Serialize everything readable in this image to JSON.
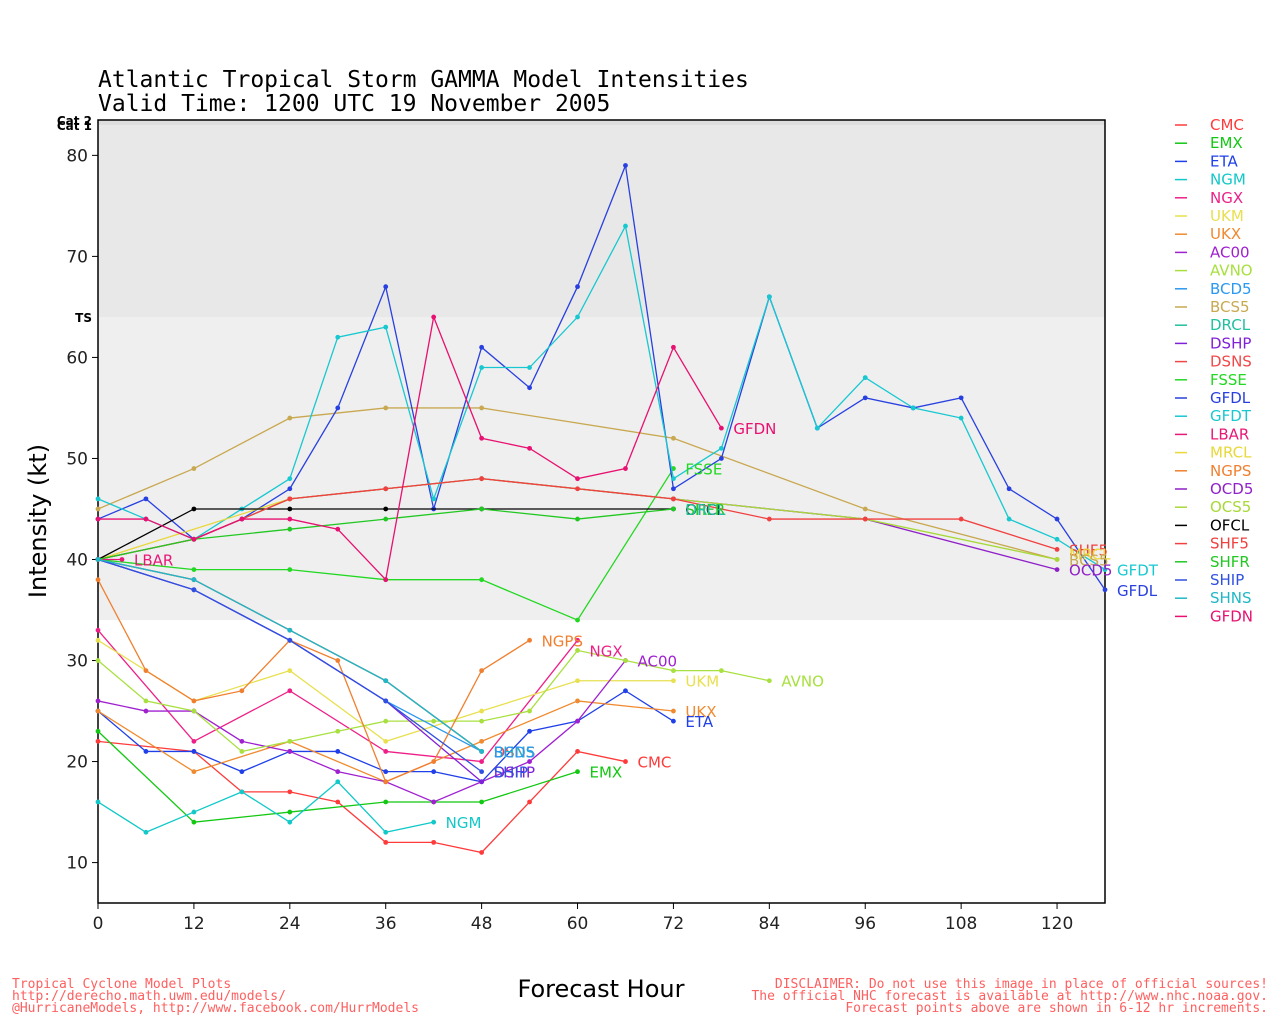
{
  "chart_data": {
    "type": "line",
    "title": "Atlantic Tropical Storm GAMMA Model Intensities",
    "subtitle": "Valid Time: 1200 UTC 19 November 2005",
    "xlabel": "Forecast Hour",
    "ylabel": "Intensity (kt)",
    "xlim": [
      0,
      126
    ],
    "ylim": [
      6,
      83.5
    ],
    "xticks": [
      "0",
      "12",
      "24",
      "36",
      "48",
      "60",
      "72",
      "84",
      "96",
      "108",
      "120"
    ],
    "yticks": [
      "10",
      "20",
      "30",
      "40",
      "50",
      "60",
      "70",
      "80"
    ],
    "bands": [
      {
        "label": "TS",
        "from": 34,
        "to": 64
      },
      {
        "label": "Cat 1",
        "from": 64,
        "to": 83
      },
      {
        "label": "Cat 2",
        "from": 83,
        "to": 83.5
      }
    ],
    "legend_position": "right",
    "series": [
      {
        "name": "CMC",
        "color": "#ff3a3a",
        "label": "CMC",
        "x": [
          0,
          12,
          18,
          24,
          30,
          36,
          42,
          48,
          54,
          60,
          66
        ],
        "y": [
          22,
          21,
          17,
          17,
          16,
          12,
          12,
          11,
          16,
          21,
          20
        ]
      },
      {
        "name": "EMX",
        "color": "#12c812",
        "label": "EMX",
        "x": [
          0,
          12,
          24,
          36,
          42,
          48,
          60
        ],
        "y": [
          23,
          14,
          15,
          16,
          16,
          16,
          19
        ]
      },
      {
        "name": "ETA",
        "color": "#1f3fe8",
        "label": "ETA",
        "x": [
          0,
          6,
          12,
          18,
          24,
          30,
          36,
          42,
          48,
          54,
          60,
          66,
          72
        ],
        "y": [
          25,
          21,
          21,
          19,
          21,
          21,
          19,
          19,
          18,
          23,
          24,
          27,
          24
        ]
      },
      {
        "name": "NGM",
        "color": "#12c8c8",
        "label": "NGM",
        "x": [
          0,
          6,
          12,
          18,
          24,
          30,
          36,
          42
        ],
        "y": [
          16,
          13,
          15,
          17,
          14,
          18,
          13,
          14
        ]
      },
      {
        "name": "NGX",
        "color": "#ee2088",
        "label": "NGX",
        "x": [
          0,
          12,
          24,
          36,
          48,
          60
        ],
        "y": [
          33,
          22,
          27,
          21,
          20,
          32
        ]
      },
      {
        "name": "UKM",
        "color": "#e8e050",
        "label": "UKM",
        "x": [
          0,
          12,
          24,
          36,
          48,
          60,
          72
        ],
        "y": [
          32,
          26,
          29,
          22,
          25,
          28,
          28
        ]
      },
      {
        "name": "UKX",
        "color": "#f08a30",
        "label": "UKX",
        "x": [
          0,
          12,
          24,
          36,
          48,
          60,
          72
        ],
        "y": [
          25,
          19,
          22,
          18,
          22,
          26,
          25
        ]
      },
      {
        "name": "AC00",
        "color": "#a020d0",
        "label": "AC00",
        "x": [
          0,
          6,
          12,
          18,
          24,
          30,
          36,
          42,
          48,
          54,
          60,
          66
        ],
        "y": [
          26,
          25,
          25,
          22,
          21,
          19,
          18,
          16,
          18,
          20,
          24,
          30
        ]
      },
      {
        "name": "AVNO",
        "color": "#a8e040",
        "label": "AVNO",
        "x": [
          0,
          6,
          12,
          18,
          24,
          30,
          36,
          42,
          48,
          54,
          60,
          66,
          72,
          78,
          84
        ],
        "y": [
          30,
          26,
          25,
          21,
          22,
          23,
          24,
          24,
          24,
          25,
          31,
          30,
          29,
          29,
          28
        ]
      },
      {
        "name": "BCD5",
        "color": "#2a98f0",
        "label": "BCD5",
        "x": [
          0,
          12,
          24,
          36,
          48
        ],
        "y": [
          40,
          37,
          32,
          26,
          21
        ]
      },
      {
        "name": "BCS5",
        "color": "#c8a850",
        "label": "BCS5",
        "x": [
          0,
          12,
          24,
          36,
          48,
          72,
          96,
          120
        ],
        "y": [
          45,
          49,
          54,
          55,
          55,
          52,
          45,
          40
        ]
      },
      {
        "name": "DRCL",
        "color": "#20c0a0",
        "label": "DRCL",
        "x": [
          0,
          12,
          24,
          36,
          48
        ],
        "y": [
          40,
          38,
          33,
          28,
          21
        ]
      },
      {
        "name": "DSHP",
        "color": "#8020d8",
        "label": "DSHP",
        "x": [
          0,
          12,
          24,
          36,
          48
        ],
        "y": [
          40,
          37,
          32,
          26,
          18
        ]
      },
      {
        "name": "DSNS",
        "color": "#f04848",
        "label": "DSNS",
        "x": [
          0,
          12,
          24,
          36,
          48
        ],
        "y": [
          40,
          38,
          33,
          28,
          21
        ]
      },
      {
        "name": "FSSE",
        "color": "#22d822",
        "label": "FSSE",
        "x": [
          0,
          12,
          24,
          36,
          48,
          60,
          72
        ],
        "y": [
          40,
          39,
          39,
          38,
          38,
          34,
          49
        ]
      },
      {
        "name": "GFDL",
        "color": "#2840e0",
        "label": "GFDL",
        "x": [
          0,
          6,
          12,
          18,
          24,
          30,
          36,
          42,
          48,
          54,
          60,
          66,
          72,
          78,
          84,
          90,
          96,
          102,
          108,
          114,
          120,
          126
        ],
        "y": [
          44,
          46,
          42,
          44,
          47,
          55,
          67,
          45,
          61,
          57,
          67,
          79,
          47,
          50,
          66,
          53,
          56,
          55,
          56,
          47,
          44,
          37
        ]
      },
      {
        "name": "GFDT",
        "color": "#18c8d0",
        "label": "GFDT",
        "x": [
          0,
          6,
          12,
          18,
          24,
          30,
          36,
          42,
          48,
          54,
          60,
          66,
          72,
          78,
          84,
          90,
          96,
          102,
          108,
          114,
          120,
          126
        ],
        "y": [
          46,
          44,
          42,
          45,
          48,
          62,
          63,
          46,
          59,
          59,
          64,
          73,
          48,
          51,
          66,
          53,
          58,
          55,
          54,
          44,
          42,
          39
        ]
      },
      {
        "name": "LBAR",
        "color": "#e81878",
        "label": "LBAR",
        "x": [
          0,
          3
        ],
        "y": [
          40,
          40
        ]
      },
      {
        "name": "MRCL",
        "color": "#e8d838",
        "label": "MRCL",
        "x": [
          0,
          24,
          48,
          72
        ],
        "y": [
          40,
          46,
          48,
          46
        ]
      },
      {
        "name": "NGPS",
        "color": "#f08030",
        "label": "NGPS",
        "x": [
          0,
          6,
          12,
          18,
          24,
          30,
          36,
          42,
          48,
          54
        ],
        "y": [
          38,
          29,
          26,
          27,
          32,
          30,
          18,
          20,
          29,
          32
        ]
      },
      {
        "name": "OCD5",
        "color": "#9020c8",
        "label": "OCD5",
        "x": [
          0,
          12,
          24,
          36,
          48,
          72,
          96,
          120
        ],
        "y": [
          40,
          42,
          46,
          47,
          48,
          46,
          44,
          39
        ]
      },
      {
        "name": "OCS5",
        "color": "#a8d838",
        "label": "OCS5",
        "x": [
          0,
          12,
          24,
          36,
          48,
          72,
          96,
          120
        ],
        "y": [
          40,
          42,
          46,
          47,
          48,
          46,
          44,
          40
        ]
      },
      {
        "name": "OFCL",
        "color": "#000000",
        "label": "OFCL",
        "x": [
          0,
          12,
          24,
          36,
          48,
          72
        ],
        "y": [
          40,
          45,
          45,
          45,
          45,
          45
        ]
      },
      {
        "name": "SHF5",
        "color": "#f04040",
        "label": "SHF5",
        "x": [
          0,
          12,
          24,
          36,
          48,
          60,
          72,
          84,
          96,
          108,
          120
        ],
        "y": [
          40,
          42,
          46,
          47,
          48,
          47,
          46,
          44,
          44,
          44,
          41
        ]
      },
      {
        "name": "SHFR",
        "color": "#22c822",
        "label": "SHFR",
        "x": [
          0,
          12,
          24,
          36,
          48,
          60,
          72
        ],
        "y": [
          40,
          42,
          43,
          44,
          45,
          44,
          45
        ]
      },
      {
        "name": "SHIP",
        "color": "#3050e0",
        "label": "SHIP",
        "x": [
          0,
          12,
          24,
          36,
          48
        ],
        "y": [
          40,
          37,
          32,
          26,
          19
        ]
      },
      {
        "name": "SHNS",
        "color": "#20b8c8",
        "label": "SHNS",
        "x": [
          0,
          12,
          24,
          36,
          48
        ],
        "y": [
          40,
          38,
          33,
          28,
          21
        ]
      },
      {
        "name": "GFDN",
        "color": "#e81070",
        "label": "GFDN",
        "x": [
          0,
          6,
          12,
          18,
          24,
          30,
          36,
          42,
          48,
          54,
          60,
          66,
          72,
          78
        ],
        "y": [
          44,
          44,
          42,
          44,
          44,
          43,
          38,
          64,
          52,
          51,
          48,
          49,
          61,
          53
        ]
      }
    ],
    "end_labels": [
      {
        "text": "LBAR",
        "series": "LBAR",
        "x": 3,
        "y": 40
      },
      {
        "text": "GFDN",
        "series": "GFDN",
        "x": 78,
        "y": 53
      },
      {
        "text": "FSSE",
        "series": "FSSE",
        "x": 72,
        "y": 49
      },
      {
        "text": "OFCL",
        "series": "OFCL",
        "x": 72,
        "y": 45
      },
      {
        "text": "SHFR",
        "series": "SHFR",
        "x": 72,
        "y": 45
      },
      {
        "text": "DRCL",
        "series": "DRCL",
        "x": 72,
        "y": 45
      },
      {
        "text": "SHF5",
        "series": "SHF5",
        "x": 120,
        "y": 41
      },
      {
        "text": "MRCL",
        "series": "MRCL",
        "x": 120,
        "y": 40.6
      },
      {
        "text": "BCS5",
        "series": "BCS5",
        "x": 120,
        "y": 40
      },
      {
        "text": "OCD5",
        "series": "OCD5",
        "x": 120,
        "y": 39
      },
      {
        "text": "GFDT",
        "series": "GFDT",
        "x": 126,
        "y": 39
      },
      {
        "text": "GFDL",
        "series": "GFDL",
        "x": 126,
        "y": 37
      },
      {
        "text": "NGPS",
        "series": "NGPS",
        "x": 54,
        "y": 32
      },
      {
        "text": "NGX",
        "series": "NGX",
        "x": 60,
        "y": 31
      },
      {
        "text": "AC00",
        "series": "AC00",
        "x": 66,
        "y": 30
      },
      {
        "text": "UKM",
        "series": "UKM",
        "x": 72,
        "y": 28
      },
      {
        "text": "AVNO",
        "series": "AVNO",
        "x": 84,
        "y": 28
      },
      {
        "text": "UKX",
        "series": "UKX",
        "x": 72,
        "y": 25
      },
      {
        "text": "ETA",
        "series": "ETA",
        "x": 72,
        "y": 24
      },
      {
        "text": "DSNS",
        "series": "DSNS",
        "x": 48,
        "y": 21
      },
      {
        "text": "SHNS",
        "series": "SHNS",
        "x": 48,
        "y": 21
      },
      {
        "text": "BCD5",
        "series": "BCD5",
        "x": 48,
        "y": 21
      },
      {
        "text": "DSHP",
        "series": "DSHP",
        "x": 48,
        "y": 19
      },
      {
        "text": "SHIP",
        "series": "SHIP",
        "x": 48,
        "y": 19
      },
      {
        "text": "CMC",
        "series": "CMC",
        "x": 66,
        "y": 20
      },
      {
        "text": "EMX",
        "series": "EMX",
        "x": 60,
        "y": 19
      },
      {
        "text": "NGM",
        "series": "NGM",
        "x": 42,
        "y": 14
      }
    ]
  },
  "footer": {
    "left": [
      "Tropical Cyclone Model Plots",
      "http://derecho.math.uwm.edu/models/",
      "@HurricaneModels, http://www.facebook.com/HurrModels"
    ],
    "right": [
      "DISCLAIMER: Do not use this image in place of official sources!",
      "The official NHC forecast is available at http://www.nhc.noaa.gov.",
      "Forecast points above are shown in 6-12 hr increments."
    ]
  }
}
